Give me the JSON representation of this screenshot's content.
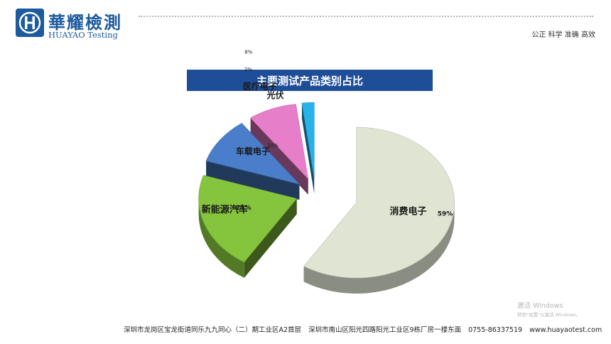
{
  "header": {
    "logo_cn": "華耀檢測",
    "logo_en": "HUAYAO Testing",
    "slogan": "公正 科学 准确 高效"
  },
  "chart_data": {
    "type": "pie",
    "title": "主要测试产品类别占比",
    "slices": [
      {
        "label": "消费电子",
        "value": 59,
        "value_label": "59%",
        "color": "#dfe5d2"
      },
      {
        "label": "新能源汽车",
        "value": 21,
        "value_label": "21%",
        "color": "#85c43d"
      },
      {
        "label": "车载电子",
        "value": 10,
        "value_label": "10%",
        "color": "#4a7ecb"
      },
      {
        "label": "医疗电子",
        "value": 8,
        "value_label": "8%",
        "color": "#e77ec9"
      },
      {
        "label": "光伏",
        "value": 2,
        "value_label": "2%",
        "color": "#28b2ea"
      }
    ],
    "legend": "none"
  },
  "footer": {
    "address1": "深圳市龙岗区宝龙街道同乐九九同心（二）期工业区A2首层",
    "address2": "深圳市南山区阳光四路阳光工业区9栋厂房一楼东面",
    "phone": "0755-86337519",
    "website": "www.huayaotest.com"
  },
  "watermark": {
    "title": "激活 Windows",
    "subtitle": "转到\"设置\"以激活 Windows。"
  }
}
